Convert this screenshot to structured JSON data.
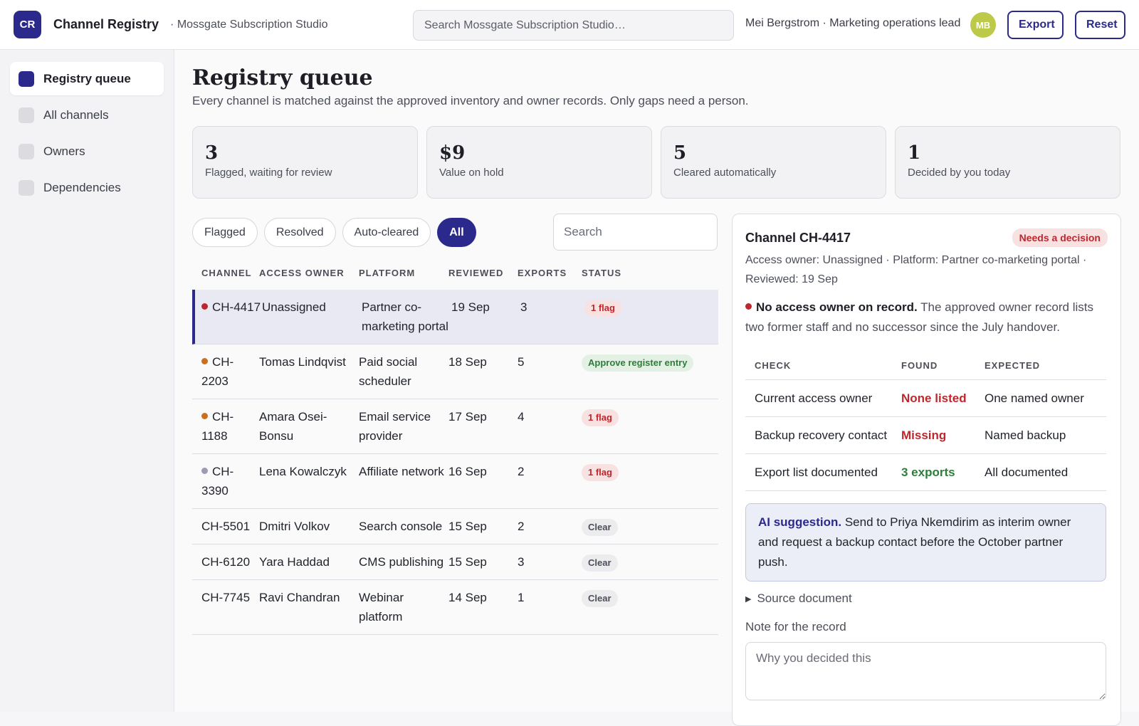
{
  "app": {
    "logo": "CR",
    "title": "Channel Registry",
    "workspace": "· Mossgate Subscription Studio",
    "search_placeholder": "Search Mossgate Subscription Studio…",
    "user": "Mei Bergstrom · Marketing operations lead",
    "avatar": "MB",
    "export_label": "Export",
    "reset_label": "Reset"
  },
  "sidebar": {
    "items": [
      {
        "label": "Registry queue",
        "active": true
      },
      {
        "label": "All channels"
      },
      {
        "label": "Owners"
      },
      {
        "label": "Dependencies"
      }
    ]
  },
  "page": {
    "title": "Registry queue",
    "subtitle": "Every channel is matched against the approved inventory and owner records. Only gaps need a person."
  },
  "stats": [
    {
      "value": "3",
      "label": "Flagged, waiting for review"
    },
    {
      "value": "$9",
      "label": "Value on hold"
    },
    {
      "value": "5",
      "label": "Cleared automatically"
    },
    {
      "value": "1",
      "label": "Decided by you today"
    }
  ],
  "filters": [
    "Flagged",
    "Resolved",
    "Auto-cleared",
    "All"
  ],
  "table_search_placeholder": "Search",
  "table": {
    "headers": [
      "CHANNEL",
      "ACCESS OWNER",
      "PLATFORM",
      "REVIEWED",
      "EXPORTS",
      "STATUS"
    ],
    "rows": [
      {
        "channel": "CH-4417",
        "owner": "Unassigned",
        "platform": "Partner co-marketing portal",
        "reviewed": "19 Sep",
        "exports": "3",
        "status": "1 flag"
      },
      {
        "channel": "CH-2203",
        "owner": "Tomas Lindqvist",
        "platform": "Paid social scheduler",
        "reviewed": "18 Sep",
        "exports": "5",
        "status": "Approve register entry"
      },
      {
        "channel": "CH-1188",
        "owner": "Amara Osei-Bonsu",
        "platform": "Email service provider",
        "reviewed": "17 Sep",
        "exports": "4",
        "status": "1 flag"
      },
      {
        "channel": "CH-3390",
        "owner": "Lena Kowalczyk",
        "platform": "Affiliate network",
        "reviewed": "16 Sep",
        "exports": "2",
        "status": "1 flag"
      },
      {
        "channel": "CH-5501",
        "owner": "Dmitri Volkov",
        "platform": "Search console",
        "reviewed": "15 Sep",
        "exports": "2",
        "status": "Clear"
      },
      {
        "channel": "CH-6120",
        "owner": "Yara Haddad",
        "platform": "CMS publishing",
        "reviewed": "15 Sep",
        "exports": "3",
        "status": "Clear"
      },
      {
        "channel": "CH-7745",
        "owner": "Ravi Chandran",
        "platform": "Webinar platform",
        "reviewed": "14 Sep",
        "exports": "1",
        "status": "Clear"
      }
    ]
  },
  "detail": {
    "title": "Channel CH-4417",
    "badge": "Needs a decision",
    "meta": "Access owner: Unassigned · Platform: Partner co-marketing portal · Reviewed: 19 Sep",
    "issue_bold": "No access owner on record.",
    "issue_text": " The approved owner record lists two former staff and no successor since the July handover.",
    "check_headers": [
      "CHECK",
      "FOUND",
      "EXPECTED"
    ],
    "checks": [
      {
        "check": "Current access owner",
        "found": "None listed",
        "expected": "One named owner"
      },
      {
        "check": "Backup recovery contact",
        "found": "Missing",
        "expected": "Named backup"
      },
      {
        "check": "Export list documented",
        "found": "3 exports",
        "expected": "All documented"
      }
    ],
    "ai_label": "AI suggestion.",
    "ai_text": " Send to Priya Nkemdirim as interim owner and request a backup contact before the October partner push.",
    "source_label": "Source document",
    "note_label": "Note for the record",
    "note_placeholder": "Why you decided this"
  },
  "colors": {
    "accent": "#2b2a8c",
    "flag_red": "#c0262d",
    "ok_green": "#2e7d3a"
  }
}
